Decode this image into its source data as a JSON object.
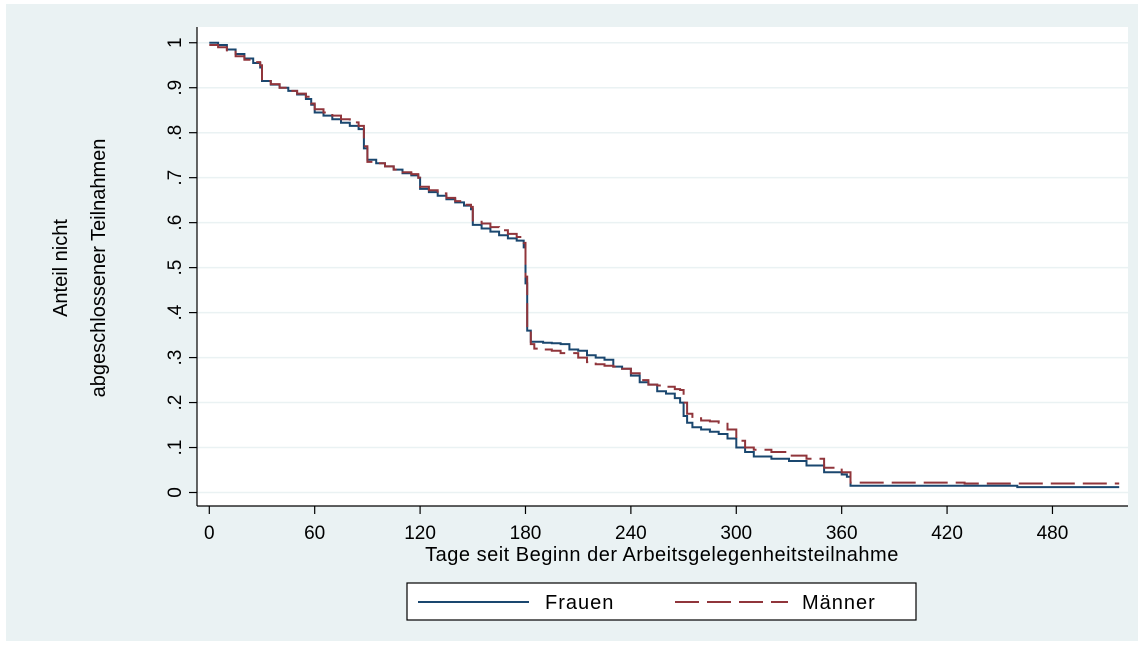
{
  "chart_data": {
    "type": "line",
    "title": "",
    "xlabel": "Tage seit Beginn der Arbeitsgelegenheitsteilnahme",
    "ylabel_lines": [
      "Anteil nicht",
      "abgeschlossener Teilnahmen"
    ],
    "xlim": [
      -7,
      523
    ],
    "ylim": [
      -0.03,
      1.035
    ],
    "x_ticks": [
      0,
      60,
      120,
      180,
      240,
      300,
      360,
      420,
      480
    ],
    "x_tick_labels": [
      "0",
      "60",
      "120",
      "180",
      "240",
      "300",
      "360",
      "420",
      "480"
    ],
    "y_ticks": [
      0,
      0.1,
      0.2,
      0.3,
      0.4,
      0.5,
      0.6,
      0.7,
      0.8,
      0.9,
      1.0
    ],
    "y_tick_labels": [
      "0",
      ".1",
      ".2",
      ".3",
      ".4",
      ".5",
      ".6",
      ".7",
      ".8",
      ".9",
      "1"
    ],
    "grid": "horizontal",
    "legend_position": "bottom",
    "series": [
      {
        "name": "Frauen",
        "color": "#1a476f",
        "dash": "solid",
        "x": [
          0,
          5,
          10,
          15,
          20,
          25,
          29,
          30,
          35,
          40,
          45,
          50,
          55,
          58,
          60,
          65,
          70,
          75,
          80,
          85,
          88,
          90,
          95,
          100,
          105,
          110,
          115,
          119,
          120,
          125,
          130,
          135,
          140,
          145,
          149,
          150,
          155,
          160,
          165,
          170,
          175,
          179,
          180,
          181,
          183,
          185,
          190,
          195,
          200,
          205,
          210,
          215,
          220,
          225,
          230,
          235,
          240,
          245,
          250,
          255,
          260,
          265,
          268,
          270,
          272,
          275,
          280,
          285,
          290,
          295,
          300,
          305,
          310,
          320,
          330,
          340,
          350,
          360,
          363,
          365,
          400,
          430,
          460,
          480,
          500,
          518
        ],
        "y": [
          1.0,
          0.995,
          0.985,
          0.975,
          0.965,
          0.955,
          0.945,
          0.915,
          0.907,
          0.9,
          0.893,
          0.885,
          0.875,
          0.862,
          0.845,
          0.838,
          0.83,
          0.822,
          0.815,
          0.808,
          0.765,
          0.74,
          0.732,
          0.725,
          0.718,
          0.71,
          0.705,
          0.7,
          0.675,
          0.668,
          0.66,
          0.652,
          0.645,
          0.638,
          0.63,
          0.595,
          0.587,
          0.58,
          0.572,
          0.565,
          0.56,
          0.545,
          0.465,
          0.36,
          0.335,
          0.335,
          0.333,
          0.332,
          0.33,
          0.318,
          0.315,
          0.305,
          0.3,
          0.295,
          0.28,
          0.275,
          0.26,
          0.245,
          0.24,
          0.225,
          0.22,
          0.21,
          0.2,
          0.17,
          0.155,
          0.145,
          0.14,
          0.135,
          0.13,
          0.12,
          0.1,
          0.09,
          0.08,
          0.075,
          0.07,
          0.06,
          0.045,
          0.04,
          0.035,
          0.015,
          0.015,
          0.015,
          0.012,
          0.012,
          0.012,
          0.012
        ]
      },
      {
        "name": "Männer",
        "color": "#90353b",
        "dash": "dashed",
        "x": [
          0,
          5,
          10,
          15,
          20,
          25,
          29,
          30,
          35,
          40,
          45,
          50,
          55,
          58,
          60,
          65,
          70,
          75,
          80,
          85,
          88,
          90,
          95,
          100,
          105,
          110,
          115,
          119,
          120,
          125,
          130,
          135,
          140,
          145,
          149,
          150,
          155,
          160,
          165,
          170,
          175,
          179,
          180,
          181,
          183,
          185,
          190,
          195,
          200,
          205,
          210,
          215,
          220,
          225,
          230,
          235,
          240,
          245,
          250,
          255,
          260,
          265,
          268,
          270,
          272,
          275,
          280,
          285,
          290,
          295,
          300,
          305,
          310,
          320,
          330,
          340,
          350,
          360,
          363,
          365,
          400,
          430,
          460,
          480,
          500,
          518
        ],
        "y": [
          0.995,
          0.99,
          0.98,
          0.97,
          0.962,
          0.957,
          0.95,
          0.915,
          0.908,
          0.9,
          0.893,
          0.887,
          0.88,
          0.865,
          0.852,
          0.845,
          0.838,
          0.83,
          0.823,
          0.815,
          0.77,
          0.735,
          0.732,
          0.725,
          0.718,
          0.712,
          0.708,
          0.7,
          0.68,
          0.672,
          0.665,
          0.655,
          0.648,
          0.64,
          0.635,
          0.605,
          0.598,
          0.59,
          0.583,
          0.575,
          0.568,
          0.555,
          0.48,
          0.37,
          0.33,
          0.32,
          0.318,
          0.315,
          0.31,
          0.31,
          0.3,
          0.29,
          0.285,
          0.282,
          0.28,
          0.275,
          0.265,
          0.25,
          0.24,
          0.238,
          0.235,
          0.23,
          0.228,
          0.2,
          0.175,
          0.165,
          0.16,
          0.158,
          0.155,
          0.14,
          0.115,
          0.1,
          0.095,
          0.09,
          0.082,
          0.075,
          0.055,
          0.045,
          0.045,
          0.022,
          0.022,
          0.02,
          0.02,
          0.02,
          0.02,
          0.02
        ]
      }
    ]
  }
}
